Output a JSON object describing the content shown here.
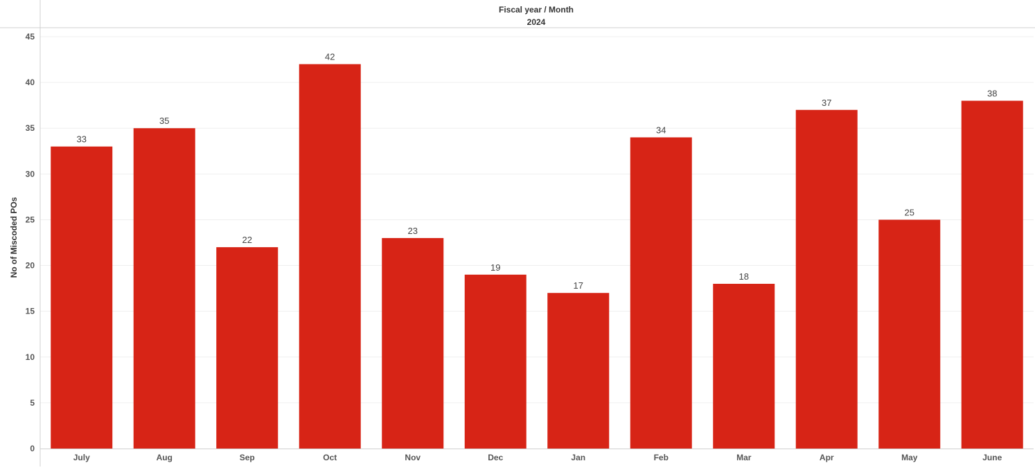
{
  "chart_data": {
    "type": "bar",
    "header": {
      "title": "Fiscal year / Month",
      "subtitle": "2024"
    },
    "ylabel": "No of Miscoded POs",
    "xlabel": "",
    "ylim": [
      0,
      45
    ],
    "yticks": [
      0,
      5,
      10,
      15,
      20,
      25,
      30,
      35,
      40,
      45
    ],
    "grid": true,
    "categories": [
      "July",
      "Aug",
      "Sep",
      "Oct",
      "Nov",
      "Dec",
      "Jan",
      "Feb",
      "Mar",
      "Apr",
      "May",
      "June"
    ],
    "values": [
      33,
      35,
      22,
      42,
      23,
      19,
      17,
      34,
      18,
      37,
      25,
      38
    ],
    "data_labels": [
      "33",
      "35",
      "22",
      "42",
      "23",
      "19",
      "17",
      "34",
      "18",
      "37",
      "25",
      "38"
    ],
    "bar_color": "#d72416",
    "gridline_color": "#efefef",
    "axis_color": "#d0d0d0"
  }
}
